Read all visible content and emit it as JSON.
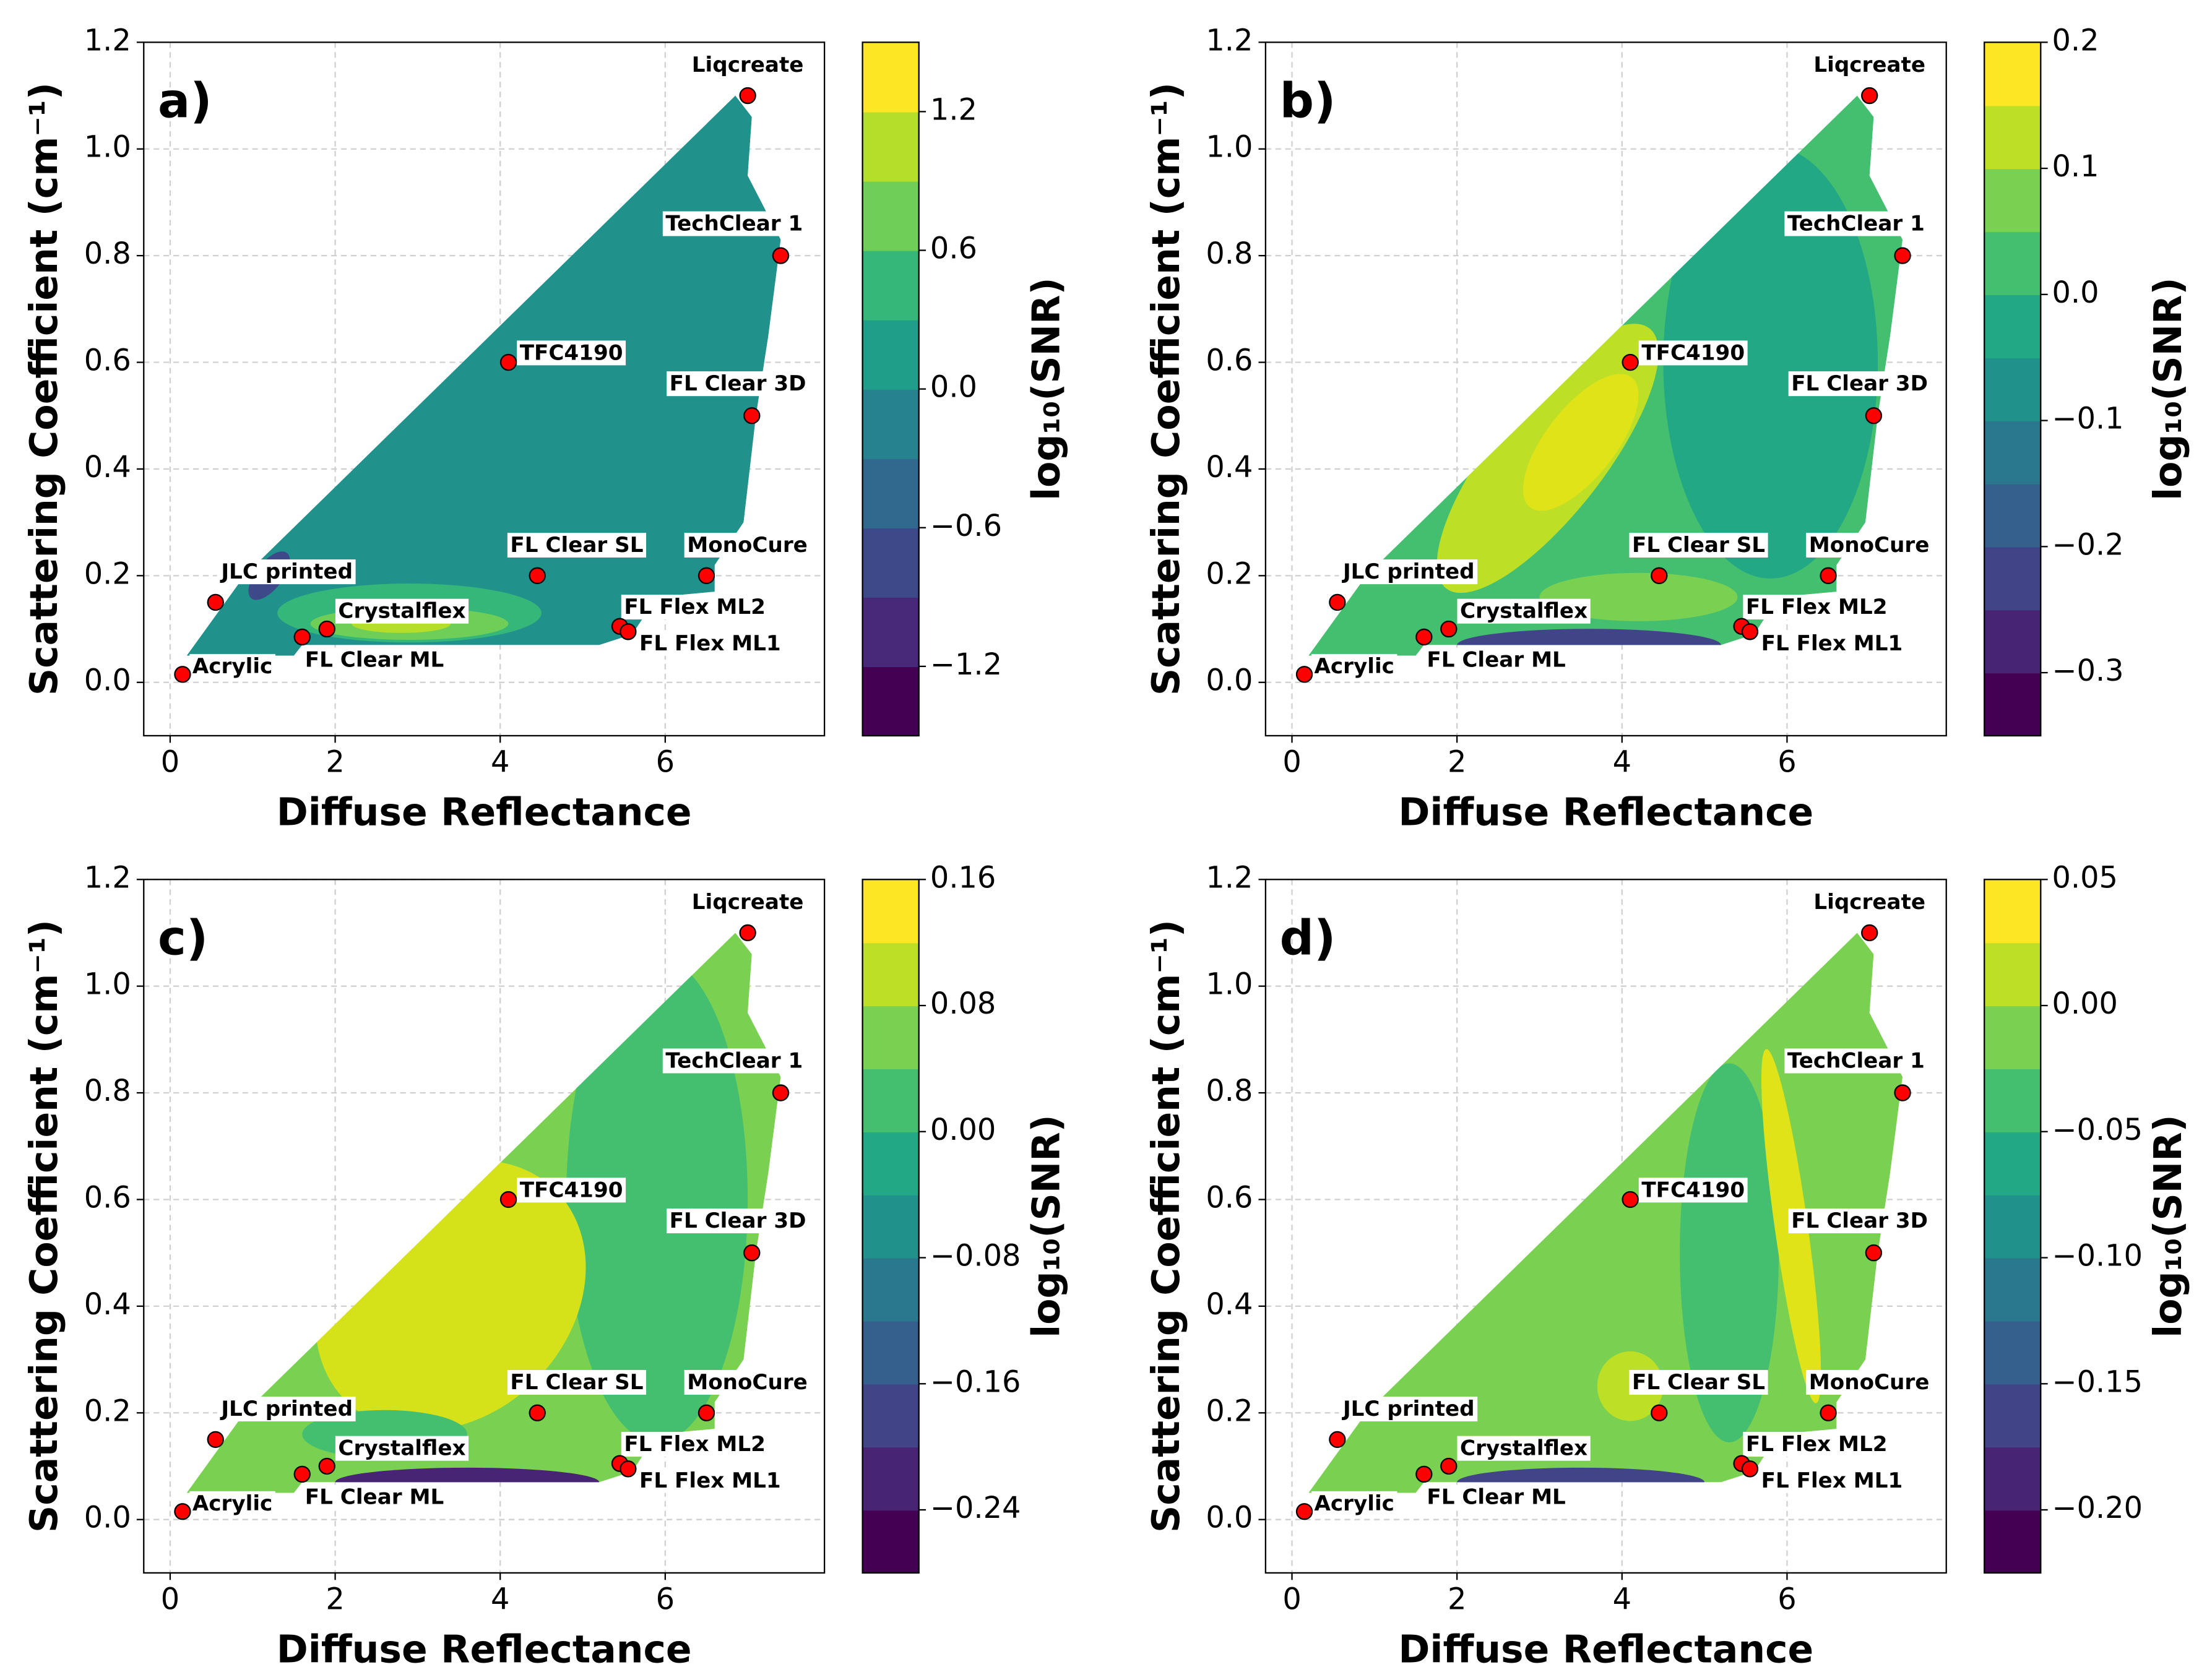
{
  "chart_data": [
    {
      "type": "scatter",
      "title": "a)",
      "x_label": "Diffuse Reflectance",
      "y_label": "Scattering Coefficient (cm⁻¹)",
      "labels": [
        "Liqcreate",
        "TechClear 1",
        "TFC4190",
        "FL Clear 3D",
        "FL Clear SL",
        "MonoCure",
        "JLC printed",
        "Crystalflex",
        "FL Clear ML",
        "Acrylic",
        "FL Flex ML2",
        "FL Flex ML1"
      ],
      "x": [
        7.0,
        7.4,
        4.1,
        7.05,
        4.45,
        6.5,
        0.55,
        1.9,
        1.6,
        0.15,
        5.45,
        5.55
      ],
      "y": [
        1.1,
        0.8,
        0.6,
        0.5,
        0.2,
        0.2,
        0.15,
        0.1,
        0.085,
        0.015,
        0.105,
        0.095
      ],
      "color": "#ff0000",
      "xlim": [
        -0.32,
        7.93
      ],
      "ylim": [
        -0.1,
        1.2
      ],
      "xticks": [
        0,
        2,
        4,
        6
      ],
      "yticks": [
        {
          "value": 0,
          "label": "0.0"
        },
        0.2,
        0.4,
        0.6,
        0.8,
        {
          "value": 1,
          "label": "1.0"
        },
        1.2
      ],
      "grid": true,
      "colorbar": {
        "label": "log₁₀(SNR)",
        "lim": [
          -1.5,
          1.5
        ],
        "ticks": [
          {
            "value": -1.2,
            "label": "−1.2"
          },
          {
            "value": -0.6,
            "label": "−0.6"
          },
          {
            "value": 0,
            "label": "0.0"
          },
          0.6,
          1.2
        ],
        "colors": [
          "#440154",
          "#482878",
          "#3e4989",
          "#31688e",
          "#26828e",
          "#1f9e89",
          "#35b779",
          "#6ece58",
          "#b5de2b",
          "#fde725"
        ]
      }
    },
    {
      "type": "scatter",
      "title": "b)",
      "x_label": "Diffuse Reflectance",
      "y_label": "Scattering Coefficient (cm⁻¹)",
      "labels": [
        "Liqcreate",
        "TechClear 1",
        "TFC4190",
        "FL Clear 3D",
        "FL Clear SL",
        "MonoCure",
        "JLC printed",
        "Crystalflex",
        "FL Clear ML",
        "Acrylic",
        "FL Flex ML2",
        "FL Flex ML1"
      ],
      "x": [
        7.0,
        7.4,
        4.1,
        7.05,
        4.45,
        6.5,
        0.55,
        1.9,
        1.6,
        0.15,
        5.45,
        5.55
      ],
      "y": [
        1.1,
        0.8,
        0.6,
        0.5,
        0.2,
        0.2,
        0.15,
        0.1,
        0.085,
        0.015,
        0.105,
        0.095
      ],
      "color": "#ff0000",
      "xlim": [
        -0.32,
        7.93
      ],
      "ylim": [
        -0.1,
        1.2
      ],
      "xticks": [
        0,
        2,
        4,
        6
      ],
      "yticks": [
        {
          "value": 0,
          "label": "0.0"
        },
        0.2,
        0.4,
        0.6,
        0.8,
        {
          "value": 1,
          "label": "1.0"
        },
        1.2
      ],
      "grid": true,
      "colorbar": {
        "label": "log₁₀(SNR)",
        "lim": [
          -0.35,
          0.2
        ],
        "ticks": [
          {
            "value": -0.3,
            "label": "−0.3"
          },
          {
            "value": -0.2,
            "label": "−0.2"
          },
          {
            "value": -0.1,
            "label": "−0.1"
          },
          {
            "value": 0,
            "label": "0.0"
          },
          0.1,
          0.2
        ],
        "colors": [
          "#440154",
          "#482475",
          "#414487",
          "#355f8d",
          "#2a788e",
          "#21918c",
          "#22a884",
          "#44bf70",
          "#7ad151",
          "#bddf26",
          "#fde725"
        ]
      }
    },
    {
      "type": "scatter",
      "title": "c)",
      "x_label": "Diffuse Reflectance",
      "y_label": "Scattering Coefficient (cm⁻¹)",
      "labels": [
        "Liqcreate",
        "TechClear 1",
        "TFC4190",
        "FL Clear 3D",
        "FL Clear SL",
        "MonoCure",
        "JLC printed",
        "Crystalflex",
        "FL Clear ML",
        "Acrylic",
        "FL Flex ML2",
        "FL Flex ML1"
      ],
      "x": [
        7.0,
        7.4,
        4.1,
        7.05,
        4.45,
        6.5,
        0.55,
        1.9,
        1.6,
        0.15,
        5.45,
        5.55
      ],
      "y": [
        1.1,
        0.8,
        0.6,
        0.5,
        0.2,
        0.2,
        0.15,
        0.1,
        0.085,
        0.015,
        0.105,
        0.095
      ],
      "color": "#ff0000",
      "xlim": [
        -0.32,
        7.93
      ],
      "ylim": [
        -0.1,
        1.2
      ],
      "xticks": [
        0,
        2,
        4,
        6
      ],
      "yticks": [
        {
          "value": 0,
          "label": "0.0"
        },
        0.2,
        0.4,
        0.6,
        0.8,
        {
          "value": 1,
          "label": "1.0"
        },
        1.2
      ],
      "grid": true,
      "colorbar": {
        "label": "log₁₀(SNR)",
        "lim": [
          -0.28,
          0.16
        ],
        "ticks": [
          {
            "value": -0.24,
            "label": "−0.24"
          },
          {
            "value": -0.16,
            "label": "−0.16"
          },
          {
            "value": -0.08,
            "label": "−0.08"
          },
          {
            "value": 0,
            "label": "0.00"
          },
          0.08,
          0.16
        ],
        "colors": [
          "#440154",
          "#482475",
          "#414487",
          "#355f8d",
          "#2a788e",
          "#21918c",
          "#22a884",
          "#44bf70",
          "#7ad151",
          "#bddf26",
          "#fde725"
        ]
      }
    },
    {
      "type": "scatter",
      "title": "d)",
      "x_label": "Diffuse Reflectance",
      "y_label": "Scattering Coefficient (cm⁻¹)",
      "labels": [
        "Liqcreate",
        "TechClear 1",
        "TFC4190",
        "FL Clear 3D",
        "FL Clear SL",
        "MonoCure",
        "JLC printed",
        "Crystalflex",
        "FL Clear ML",
        "Acrylic",
        "FL Flex ML2",
        "FL Flex ML1"
      ],
      "x": [
        7.0,
        7.4,
        4.1,
        7.05,
        4.45,
        6.5,
        0.55,
        1.9,
        1.6,
        0.15,
        5.45,
        5.55
      ],
      "y": [
        1.1,
        0.8,
        0.6,
        0.5,
        0.2,
        0.2,
        0.15,
        0.1,
        0.085,
        0.015,
        0.105,
        0.095
      ],
      "color": "#ff0000",
      "xlim": [
        -0.32,
        7.93
      ],
      "ylim": [
        -0.1,
        1.2
      ],
      "xticks": [
        0,
        2,
        4,
        6
      ],
      "yticks": [
        {
          "value": 0,
          "label": "0.0"
        },
        0.2,
        0.4,
        0.6,
        0.8,
        {
          "value": 1,
          "label": "1.0"
        },
        1.2
      ],
      "grid": true,
      "colorbar": {
        "label": "log₁₀(SNR)",
        "lim": [
          -0.225,
          0.05
        ],
        "ticks": [
          {
            "value": -0.2,
            "label": "−0.20"
          },
          {
            "value": -0.15,
            "label": "−0.15"
          },
          {
            "value": -0.1,
            "label": "−0.10"
          },
          {
            "value": -0.05,
            "label": "−0.05"
          },
          {
            "value": 0,
            "label": "0.00"
          },
          0.05
        ],
        "colors": [
          "#440154",
          "#482475",
          "#414487",
          "#355f8d",
          "#2a788e",
          "#21918c",
          "#22a884",
          "#44bf70",
          "#7ad151",
          "#bddf26",
          "#fde725"
        ]
      }
    }
  ]
}
